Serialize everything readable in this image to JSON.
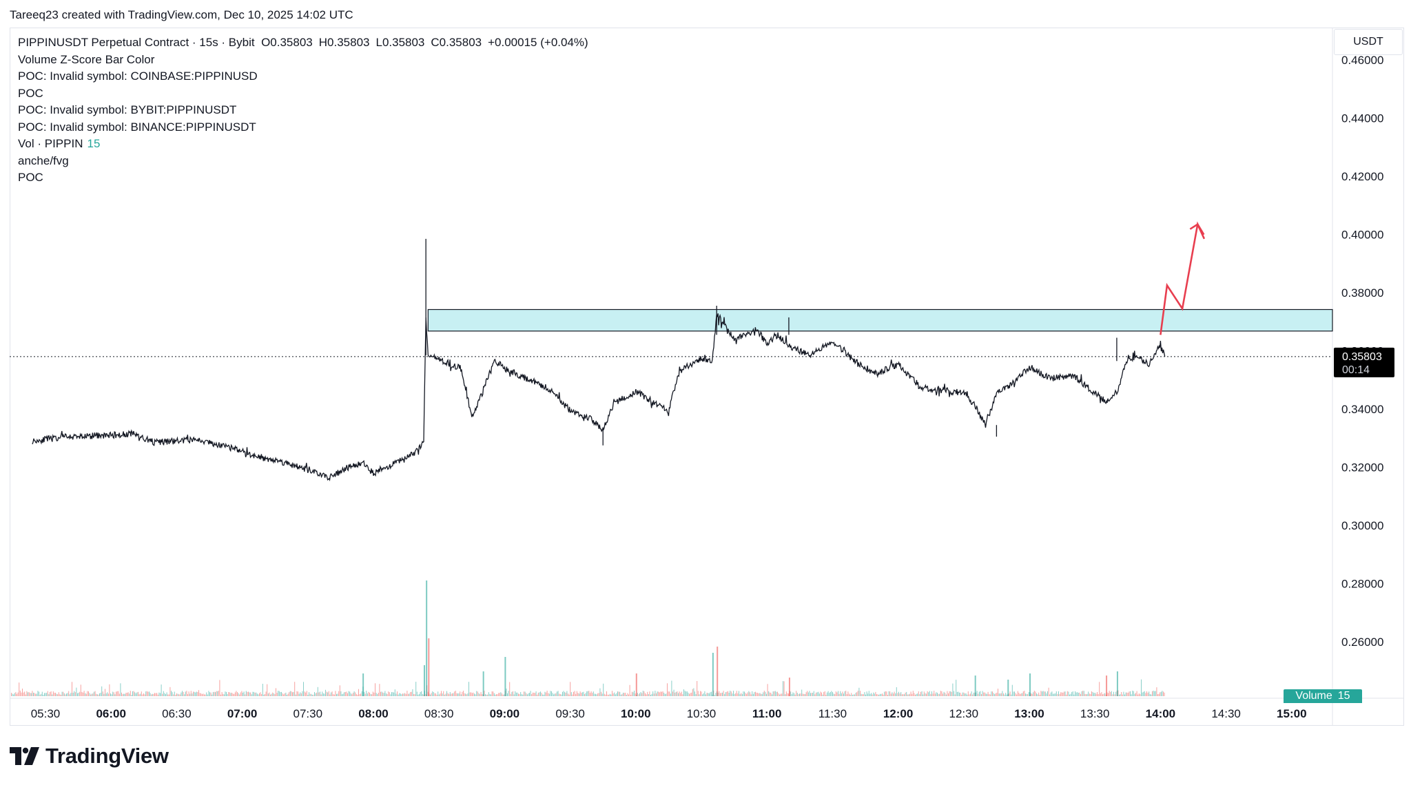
{
  "header": {
    "attribution": "Tareeq23 created with TradingView.com, Dec 10, 2025 14:02 UTC"
  },
  "legend": {
    "symbol_line": "PIPPINUSDT Perpetual Contract · 15s · Bybit",
    "open": "O0.35803",
    "high": "H0.35803",
    "low": "L0.35803",
    "close": "C0.35803",
    "change": "+0.00015 (+0.04%)",
    "indicators": [
      "Volume Z-Score Bar Color",
      "POC: Invalid symbol: COINBASE:PIPPINUSD",
      "POC",
      "POC: Invalid symbol: BYBIT:PIPPINUSDT",
      "POC: Invalid symbol: BINANCE:PIPPINUSDT"
    ],
    "vol_label": "Vol · PIPPIN",
    "vol_value": "15",
    "extra_indicators": [
      "anche/fvg",
      "POC"
    ]
  },
  "price_axis": {
    "currency": "USDT",
    "ticks": [
      "0.46000",
      "0.44000",
      "0.42000",
      "0.40000",
      "0.38000",
      "0.36000",
      "0.34000",
      "0.32000",
      "0.30000",
      "0.28000",
      "0.26000"
    ]
  },
  "last_price": {
    "value": "0.35803",
    "countdown": "00:14"
  },
  "volume_badge": {
    "label": "Volume",
    "value": "15"
  },
  "time_axis": {
    "ticks": [
      {
        "label": "05:30",
        "bold": false
      },
      {
        "label": "06:00",
        "bold": true
      },
      {
        "label": "06:30",
        "bold": false
      },
      {
        "label": "07:00",
        "bold": true
      },
      {
        "label": "07:30",
        "bold": false
      },
      {
        "label": "08:00",
        "bold": true
      },
      {
        "label": "08:30",
        "bold": false
      },
      {
        "label": "09:00",
        "bold": true
      },
      {
        "label": "09:30",
        "bold": false
      },
      {
        "label": "10:00",
        "bold": true
      },
      {
        "label": "10:30",
        "bold": false
      },
      {
        "label": "11:00",
        "bold": true
      },
      {
        "label": "11:30",
        "bold": false
      },
      {
        "label": "12:00",
        "bold": true
      },
      {
        "label": "12:30",
        "bold": false
      },
      {
        "label": "13:00",
        "bold": true
      },
      {
        "label": "13:30",
        "bold": false
      },
      {
        "label": "14:00",
        "bold": true
      },
      {
        "label": "14:30",
        "bold": false
      },
      {
        "label": "15:00",
        "bold": true
      }
    ]
  },
  "footer": {
    "brand": "TradingView"
  },
  "colors": {
    "price_line": "#131722",
    "zone_fill": "#c8f0f3",
    "zone_border": "#131722",
    "arrow": "#e83e4f",
    "vol_up": "#26a69a",
    "vol_down": "#ef5350",
    "axis_text": "#131722",
    "last_price_bg": "#000000"
  },
  "chart_data": {
    "type": "line",
    "title": "PIPPINUSDT Perpetual Contract · 15s · Bybit",
    "xlabel": "",
    "ylabel": "",
    "ylim": [
      0.245,
      0.4676
    ],
    "xlim": [
      "05:24",
      "15:15"
    ],
    "grid": false,
    "series": [
      {
        "name": "PIPPINUSDT",
        "x": [
          "05:24",
          "05:40",
          "06:00",
          "06:10",
          "06:20",
          "06:40",
          "07:00",
          "07:05",
          "07:20",
          "07:40",
          "07:50",
          "07:55",
          "08:00",
          "08:10",
          "08:20",
          "08:23",
          "08:24",
          "08:25",
          "08:30",
          "08:40",
          "08:45",
          "08:50",
          "08:55",
          "09:00",
          "09:10",
          "09:20",
          "09:30",
          "09:40",
          "09:45",
          "09:50",
          "10:00",
          "10:10",
          "10:15",
          "10:20",
          "10:30",
          "10:35",
          "10:37",
          "10:45",
          "10:50",
          "10:55",
          "11:00",
          "11:05",
          "11:10",
          "11:20",
          "11:30",
          "11:40",
          "11:50",
          "12:00",
          "12:10",
          "12:20",
          "12:30",
          "12:35",
          "12:40",
          "12:45",
          "12:50",
          "13:00",
          "13:10",
          "13:20",
          "13:30",
          "13:35",
          "13:40",
          "13:45",
          "13:50",
          "13:55",
          "14:00",
          "14:02"
        ],
        "values": [
          0.329,
          0.3305,
          0.331,
          0.3315,
          0.3285,
          0.3295,
          0.3255,
          0.324,
          0.3215,
          0.3165,
          0.3205,
          0.3215,
          0.318,
          0.3215,
          0.3255,
          0.329,
          0.372,
          0.3585,
          0.357,
          0.354,
          0.337,
          0.346,
          0.357,
          0.354,
          0.3505,
          0.347,
          0.3395,
          0.3365,
          0.3325,
          0.342,
          0.346,
          0.3415,
          0.3395,
          0.353,
          0.3575,
          0.3565,
          0.3725,
          0.3645,
          0.3655,
          0.3675,
          0.3625,
          0.3655,
          0.3615,
          0.3585,
          0.3635,
          0.3565,
          0.352,
          0.3555,
          0.3475,
          0.3465,
          0.3455,
          0.3415,
          0.3345,
          0.3455,
          0.3475,
          0.3545,
          0.3505,
          0.3515,
          0.3455,
          0.3425,
          0.3455,
          0.3575,
          0.3575,
          0.3555,
          0.3625,
          0.35803
        ]
      }
    ],
    "zone": {
      "top": 0.3742,
      "bottom": 0.3668,
      "from": "08:25",
      "to": "15:15"
    },
    "projection_path": {
      "x": [
        "14:00",
        "14:03",
        "14:10",
        "14:17",
        "14:20",
        "14:18",
        "14:20",
        "14:23"
      ],
      "values": [
        0.3655,
        0.3825,
        0.3745,
        0.4035,
        0.3985,
        0.4035,
        0.4035,
        0.3985
      ]
    },
    "volume": {
      "spikes_x": [
        "08:24",
        "08:25",
        "08:23",
        "10:35",
        "10:37",
        "09:00",
        "08:50",
        "10:00",
        "12:35",
        "13:00",
        "13:35",
        "13:40",
        "07:55",
        "11:10",
        "12:50"
      ],
      "spikes_values": [
        560,
        280,
        150,
        210,
        240,
        190,
        120,
        110,
        100,
        110,
        100,
        120,
        110,
        90,
        80
      ]
    }
  }
}
